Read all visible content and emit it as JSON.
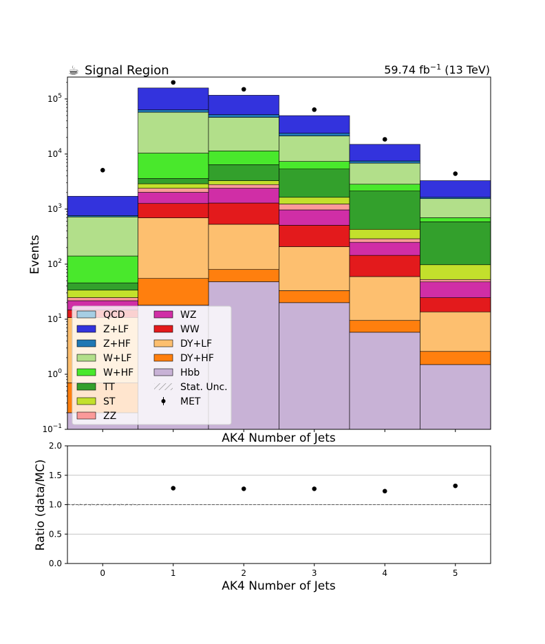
{
  "header": {
    "title": "Signal Region",
    "lumi_prefix": "59.74 fb",
    "lumi_exp": "−1",
    "lumi_suffix": " (13 TeV)"
  },
  "icons": {
    "title_icon": "coffee-cup-icon"
  },
  "chart_data": [
    {
      "type": "bar",
      "stacked": true,
      "scale": "log",
      "ylabel": "Events",
      "xlabel": "AK4 Number of Jets",
      "categories": [
        "0",
        "1",
        "2",
        "3",
        "4",
        "5"
      ],
      "ylim": [
        0.1,
        250000
      ],
      "ytick_labels": [
        {
          "base": "10",
          "exp": "−1",
          "value": 0.1
        },
        {
          "base": "10",
          "exp": "0",
          "value": 1
        },
        {
          "base": "10",
          "exp": "1",
          "value": 10
        },
        {
          "base": "10",
          "exp": "2",
          "value": 100
        },
        {
          "base": "10",
          "exp": "3",
          "value": 1000
        },
        {
          "base": "10",
          "exp": "4",
          "value": 10000
        },
        {
          "base": "10",
          "exp": "5",
          "value": 100000
        }
      ],
      "legend_position": "lower-left",
      "series": [
        {
          "name": "Hbb",
          "color": "#c8b2d6",
          "values": [
            0.2,
            18,
            48,
            20,
            5.8,
            1.5
          ]
        },
        {
          "name": "DY+HF",
          "color": "#ff7f0e",
          "values": [
            0.5,
            37,
            32,
            13,
            3.7,
            1.1
          ]
        },
        {
          "name": "DY+LF",
          "color": "#fdbf6f",
          "values": [
            10,
            640,
            450,
            175,
            50,
            11
          ]
        },
        {
          "name": "WW",
          "color": "#e31a1c",
          "values": [
            4,
            570,
            760,
            300,
            85,
            11
          ]
        },
        {
          "name": "WZ",
          "color": "#d02ea6",
          "values": [
            7,
            750,
            1100,
            460,
            105,
            23
          ]
        },
        {
          "name": "ZZ",
          "color": "#fb9a99",
          "values": [
            3,
            370,
            400,
            270,
            40,
            5
          ]
        },
        {
          "name": "ST",
          "color": "#c3e02c",
          "values": [
            9,
            500,
            500,
            400,
            140,
            45
          ]
        },
        {
          "name": "TT",
          "color": "#33a02c",
          "values": [
            12,
            700,
            3100,
            3700,
            1700,
            490
          ]
        },
        {
          "name": "W+HF",
          "color": "#49e82c",
          "values": [
            95,
            6800,
            5000,
            2000,
            700,
            110
          ]
        },
        {
          "name": "W+LF",
          "color": "#b2df8a",
          "values": [
            580,
            47000,
            35000,
            14000,
            4000,
            850
          ]
        },
        {
          "name": "Z+HF",
          "color": "#1f78b4",
          "values": [
            40,
            6000,
            5500,
            2500,
            650,
            90
          ]
        },
        {
          "name": "Z+LF",
          "color": "#3333dd",
          "values": [
            950,
            95000,
            65000,
            26000,
            7500,
            1650
          ]
        },
        {
          "name": "QCD",
          "color": "#a6cee3",
          "values": [
            0,
            0,
            0,
            0,
            0,
            0
          ]
        }
      ],
      "data_points": {
        "name": "MET",
        "values": [
          5100,
          200000,
          150000,
          64000,
          18500,
          4400
        ]
      },
      "stat_unc_label": "Stat. Unc.",
      "legend_items": [
        {
          "label": "QCD",
          "color": "#a6cee3",
          "kind": "patch"
        },
        {
          "label": "Z+LF",
          "color": "#3333dd",
          "kind": "patch"
        },
        {
          "label": "Z+HF",
          "color": "#1f78b4",
          "kind": "patch"
        },
        {
          "label": "W+LF",
          "color": "#b2df8a",
          "kind": "patch"
        },
        {
          "label": "W+HF",
          "color": "#49e82c",
          "kind": "patch"
        },
        {
          "label": "TT",
          "color": "#33a02c",
          "kind": "patch"
        },
        {
          "label": "ST",
          "color": "#c3e02c",
          "kind": "patch"
        },
        {
          "label": "ZZ",
          "color": "#fb9a99",
          "kind": "patch"
        },
        {
          "label": "WZ",
          "color": "#d02ea6",
          "kind": "patch"
        },
        {
          "label": "WW",
          "color": "#e31a1c",
          "kind": "patch"
        },
        {
          "label": "DY+LF",
          "color": "#fdbf6f",
          "kind": "patch"
        },
        {
          "label": "DY+HF",
          "color": "#ff7f0e",
          "kind": "patch"
        },
        {
          "label": "Hbb",
          "color": "#c8b2d6",
          "kind": "patch"
        },
        {
          "label": "Stat. Unc.",
          "color": "#aaaaaa",
          "kind": "hatch"
        },
        {
          "label": "MET",
          "color": "#000000",
          "kind": "marker"
        }
      ]
    },
    {
      "type": "scatter",
      "ylabel": "Ratio (data/MC)",
      "xlabel": "AK4 Number of Jets",
      "x": [
        0,
        1,
        2,
        3,
        4,
        5
      ],
      "xtick_labels": [
        "0",
        "1",
        "2",
        "3",
        "4",
        "5"
      ],
      "points": [
        {
          "x": 1,
          "y": 1.28
        },
        {
          "x": 2,
          "y": 1.27
        },
        {
          "x": 3,
          "y": 1.27
        },
        {
          "x": 4,
          "y": 1.23
        },
        {
          "x": 5,
          "y": 1.32
        }
      ],
      "ylim": [
        0,
        2
      ],
      "ytick_labels": [
        "0.0",
        "0.5",
        "1.0",
        "1.5",
        "2.0"
      ],
      "grid": true,
      "reference_line": 1.0
    }
  ]
}
